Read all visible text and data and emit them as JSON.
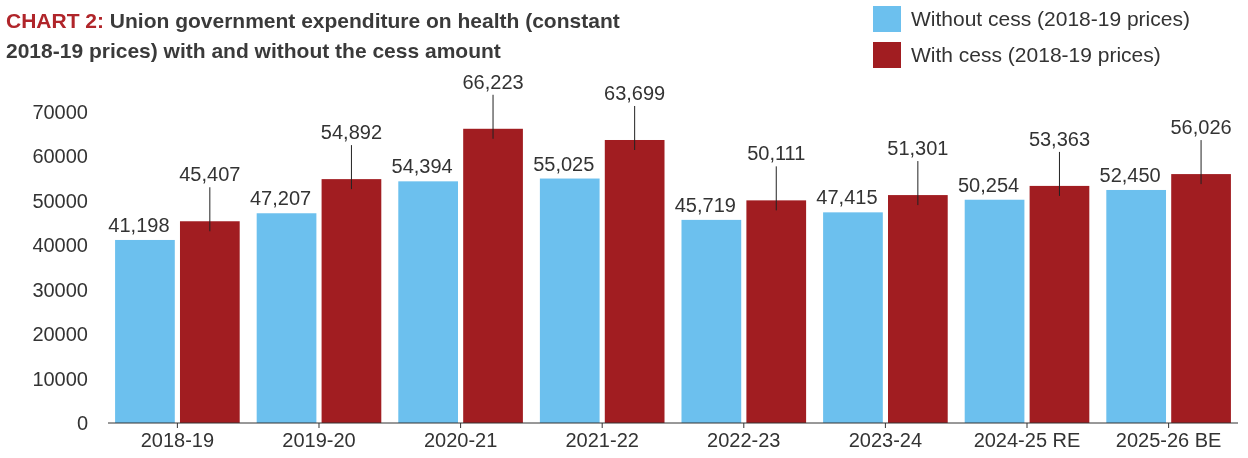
{
  "chart_data": {
    "type": "bar",
    "title": "CHART 2: Union government expenditure on health (constant 2018-19 prices) with and without the cess amount",
    "categories": [
      "2018-19",
      "2019-20",
      "2020-21",
      "2021-22",
      "2022-23",
      "2023-24",
      "2024-25 RE",
      "2025-26 BE"
    ],
    "series": [
      {
        "name": "Without cess (2018-19 prices)",
        "color": "#6cc0ee",
        "values": [
          41198,
          47207,
          54394,
          55025,
          45719,
          47415,
          50254,
          52450
        ],
        "value_labels": [
          "41,198",
          "47,207",
          "54,394",
          "55,025",
          "45,719",
          "47,415",
          "50,254",
          "52,450"
        ]
      },
      {
        "name": "With cess (2018-19 prices)",
        "color": "#a11d21",
        "values": [
          45407,
          54892,
          66223,
          63699,
          50111,
          51301,
          53363,
          56026
        ],
        "value_labels": [
          "45,407",
          "54,892",
          "66,223",
          "63,699",
          "50,111",
          "51,301",
          "53,363",
          "56,026"
        ]
      }
    ],
    "ylim": [
      0,
      70000
    ],
    "yticks": [
      0,
      10000,
      20000,
      30000,
      40000,
      50000,
      60000,
      70000
    ],
    "grid": false,
    "legend": "top right"
  }
}
